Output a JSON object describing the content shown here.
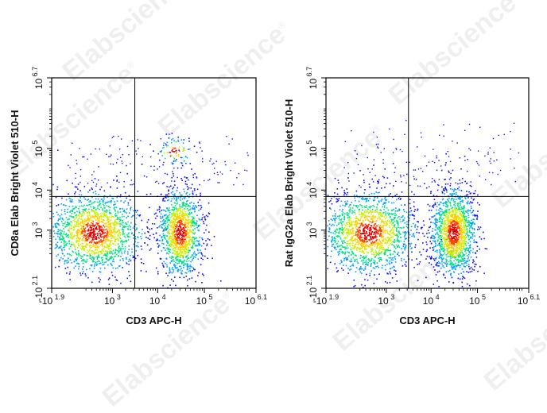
{
  "watermark": "Elabscience",
  "watermark_mark": "®",
  "chart_data": [
    {
      "type": "scatter",
      "subtype": "flow-cytometry-density-dot-plot",
      "title": "",
      "xlabel": "CD3 APC-H",
      "ylabel": "CD8a Elab Bright Violet 510-H",
      "x_scale": "biexponential",
      "y_scale": "biexponential",
      "xlim": [
        -79,
        1260000
      ],
      "ylim": [
        -126,
        5010000
      ],
      "x_ticks": [
        {
          "value": -79,
          "base": "-10",
          "exp": "1.9"
        },
        {
          "value": 1000,
          "base": "10",
          "exp": "3"
        },
        {
          "value": 10000,
          "base": "10",
          "exp": "4"
        },
        {
          "value": 100000,
          "base": "10",
          "exp": "5"
        },
        {
          "value": 1260000,
          "base": "10",
          "exp": "6.1"
        }
      ],
      "y_ticks": [
        {
          "value": -126,
          "base": "-10",
          "exp": "2.1"
        },
        {
          "value": 1000,
          "base": "10",
          "exp": "3"
        },
        {
          "value": 10000,
          "base": "10",
          "exp": "4"
        },
        {
          "value": 100000,
          "base": "10",
          "exp": "5"
        },
        {
          "value": 5010000,
          "base": "10",
          "exp": "6.7"
        }
      ],
      "quadrant_gate": {
        "x": 3200,
        "y": 7000
      },
      "color_scale": [
        "#1010ff",
        "#00a0ff",
        "#00e080",
        "#c8f000",
        "#ffd000",
        "#ff4000",
        "#e00000"
      ],
      "populations": [
        {
          "name": "",
          "center": {
            "x": 350,
            "y": 900
          },
          "relative_density": 1.0
        },
        {
          "name": "",
          "center": {
            "x": 30000,
            "y": 900
          },
          "relative_density": 0.75
        },
        {
          "name": "",
          "center": {
            "x": 22000,
            "y": 90000
          },
          "relative_density": 0.3
        }
      ]
    },
    {
      "type": "scatter",
      "subtype": "flow-cytometry-density-dot-plot",
      "title": "",
      "xlabel": "CD3 APC-H",
      "ylabel": "Rat IgG2a Elab Bright Violet 510-H",
      "x_scale": "biexponential",
      "y_scale": "biexponential",
      "xlim": [
        -79,
        1260000
      ],
      "ylim": [
        -126,
        5010000
      ],
      "x_ticks": [
        {
          "value": -79,
          "base": "-10",
          "exp": "1.9"
        },
        {
          "value": 1000,
          "base": "10",
          "exp": "3"
        },
        {
          "value": 10000,
          "base": "10",
          "exp": "4"
        },
        {
          "value": 100000,
          "base": "10",
          "exp": "5"
        },
        {
          "value": 1260000,
          "base": "10",
          "exp": "6.1"
        }
      ],
      "y_ticks": [
        {
          "value": -126,
          "base": "-10",
          "exp": "2.1"
        },
        {
          "value": 1000,
          "base": "10",
          "exp": "3"
        },
        {
          "value": 10000,
          "base": "10",
          "exp": "4"
        },
        {
          "value": 100000,
          "base": "10",
          "exp": "5"
        },
        {
          "value": 5010000,
          "base": "10",
          "exp": "6.7"
        }
      ],
      "quadrant_gate": {
        "x": 3200,
        "y": 7000
      },
      "color_scale": [
        "#1010ff",
        "#00a0ff",
        "#00e080",
        "#c8f000",
        "#ffd000",
        "#ff4000",
        "#e00000"
      ],
      "populations": [
        {
          "name": "",
          "center": {
            "x": 350,
            "y": 900
          },
          "relative_density": 1.0
        },
        {
          "name": "",
          "center": {
            "x": 30000,
            "y": 900
          },
          "relative_density": 0.9
        }
      ]
    }
  ]
}
